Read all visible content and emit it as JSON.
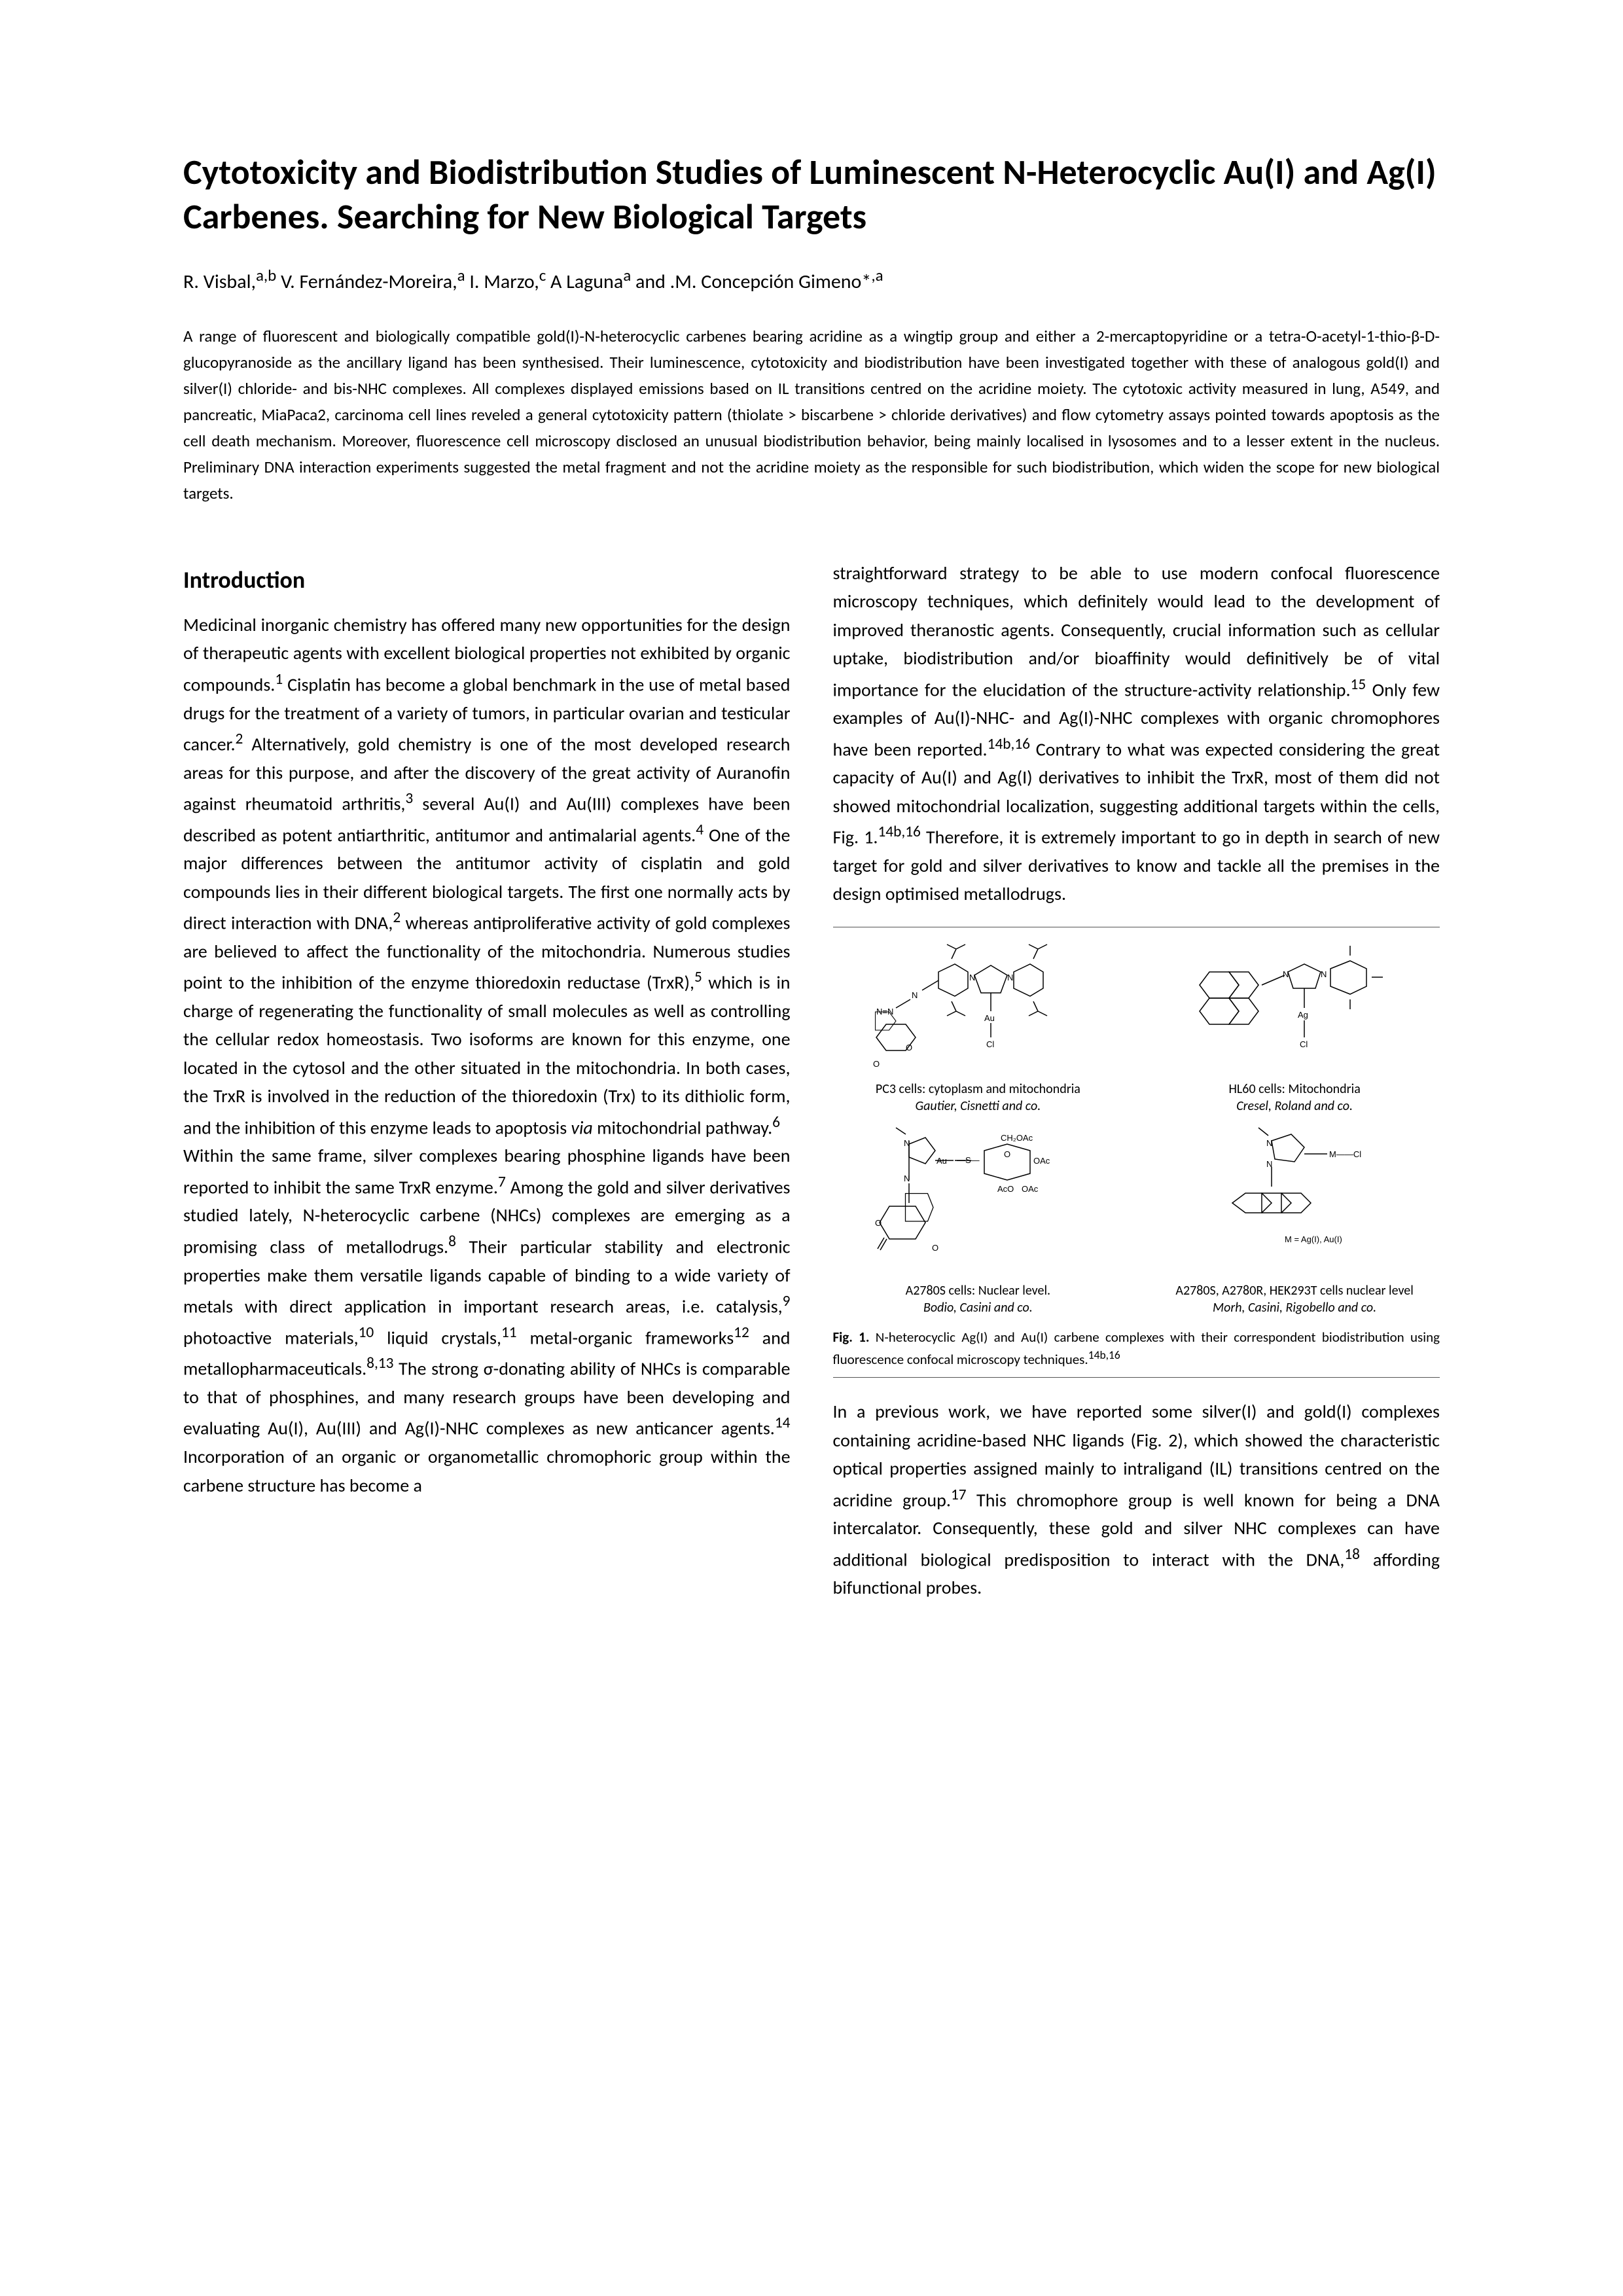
{
  "title": "Cytotoxicity and Biodistribution Studies of Luminescent N-Heterocyclic Au(I) and Ag(I) Carbenes. Searching for New Biological Targets",
  "authors_html": "R. Visbal,<sup>a,b</sup> V. Fernández-Moreira,<sup>a</sup> I. Marzo,<sup>c</sup> A Laguna<sup>a</sup> and .M. Concepción Gimeno*<sup>,a</sup>",
  "abstract": "A range of fluorescent and biologically compatible gold(I)-N-heterocyclic carbenes bearing acridine as a wingtip group and either a 2-mercaptopyridine or a tetra-O-acetyl-1-thio-β-D-glucopyranoside as the ancillary ligand has been synthesised. Their luminescence, cytotoxicity and biodistribution have been investigated together with these of analogous gold(I) and silver(I) chloride- and bis-NHC complexes. All complexes displayed emissions based on IL transitions centred on the acridine moiety. The cytotoxic activity measured in lung, A549, and pancreatic, MiaPaca2, carcinoma cell lines reveled a general cytotoxicity pattern (thiolate > biscarbene > chloride derivatives) and flow cytometry assays pointed towards apoptosis as the cell death mechanism. Moreover, fluorescence cell microscopy disclosed an unusual biodistribution behavior, being mainly localised in lysosomes and to a lesser extent in the nucleus. Preliminary DNA interaction experiments suggested the metal fragment and not the acridine moiety as the responsible for such biodistribution, which widen the scope for new biological targets.",
  "intro_heading": "Introduction",
  "col1_p1_html": "Medicinal inorganic chemistry has offered many new opportunities for the design of therapeutic agents with excellent biological properties not exhibited by organic compounds.<sup>1</sup> Cisplatin has become a global benchmark in the use of metal based drugs for the treatment of a variety of tumors, in particular ovarian and testicular cancer.<sup>2</sup> Alternatively, gold chemistry is one of the most developed research areas for this purpose, and after the discovery of the great activity of Auranofin against rheumatoid arthritis,<sup>3</sup> several Au(I) and Au(III) complexes have been described as potent antiarthritic, antitumor and antimalarial agents.<sup>4</sup> One of the major differences between the antitumor activity of cisplatin and gold compounds lies in their different biological targets. The first one normally acts by direct interaction with DNA,<sup>2</sup> whereas antiproliferative activity of gold complexes are believed to affect the functionality of the mitochondria. Numerous studies point to the inhibition of the enzyme thioredoxin reductase (TrxR),<sup>5</sup> which is in charge of regenerating the functionality of small molecules as well as controlling the cellular redox homeostasis. Two isoforms are known for this enzyme, one located in the cytosol and the other situated in the mitochondria. In both cases, the TrxR is involved in the reduction of the thioredoxin (Trx) to its dithiolic form, and the inhibition of this enzyme leads to apoptosis <i>via</i> mitochondrial pathway.<sup>6</sup>",
  "col1_p2_html": "Within the same frame, silver complexes bearing phosphine ligands have been reported to inhibit the same TrxR enzyme.<sup>7</sup> Among the gold and silver derivatives studied lately, N-heterocyclic carbene (NHCs) complexes are emerging as a promising class of metallodrugs.<sup>8</sup> Their particular stability and electronic properties make them versatile ligands capable of binding to a wide variety of metals with direct application in important research areas, i.e. catalysis,<sup>9</sup> photoactive materials,<sup>10</sup> liquid crystals,<sup>11</sup> metal-organic frameworks<sup>12</sup> and metallopharmaceuticals.<sup>8,13</sup> The strong σ-donating ability of NHCs is comparable to that of phosphines, and many research groups have been developing and evaluating Au(I), Au(III) and Ag(I)-NHC complexes as new anticancer agents.<sup>14</sup> Incorporation of an organic or organometallic chromophoric group within the carbene structure has become a",
  "col2_p1_html": "straightforward strategy to be able to use modern confocal fluorescence microscopy techniques, which definitely would lead to the development of improved theranostic agents. Consequently, crucial information such as cellular uptake, biodistribution and/or bioaffinity would definitively be of vital importance for the elucidation of the structure-activity relationship.<sup>15</sup> Only few examples of Au(I)-NHC- and Ag(I)-NHC complexes with organic chromophores have been reported.<sup>14b,16</sup> Contrary to what was expected considering the great capacity of Au(I) and Ag(I) derivatives to inhibit the TrxR, most of them did not showed mitochondrial localization, suggesting additional targets within the cells, Fig. 1.<sup>14b,16</sup> Therefore, it is extremely important to go in depth in search of new target for gold and silver derivatives to know and tackle all the premises in the design optimised metallodrugs.",
  "col2_p2_html": "In a previous work, we have reported some silver(I) and gold(I) complexes containing acridine-based NHC ligands (Fig. 2), which showed the characteristic optical properties assigned mainly to intraligand (IL) transitions centred on the acridine group.<sup>17</sup> This chromophore group is well known for being a DNA intercalator. Consequently, these gold and silver NHC complexes can have additional biological predisposition to interact with the DNA,<sup>18</sup> affording bifunctional probes.",
  "figure": {
    "cells": [
      {
        "cap_line1": "PC3 cells: cytoplasm and mitochondria",
        "cap_line2": "Gautier, Cisnetti and co."
      },
      {
        "cap_line1": "HL60 cells: Mitochondria",
        "cap_line2": "Cresel, Roland and co."
      },
      {
        "cap_line1": "A2780S cells: Nuclear level.",
        "cap_line2": "Bodio, Casini and co."
      },
      {
        "cap_line1": "A2780S, A2780R, HEK293T cells nuclear level",
        "cap_line2": "Morh, Casini, Rigobello and co."
      }
    ],
    "caption_html": "<b>Fig. 1.</b> N-heterocyclic Ag(I) and Au(I) carbene complexes with their correspondent biodistribution using fluorescence confocal microscopy techniques.<sup>14b,16</sup>"
  },
  "colors": {
    "text": "#000000",
    "background": "#ffffff",
    "rule": "#555555"
  },
  "typography": {
    "title_pt": 54,
    "authors_pt": 30,
    "abstract_pt": 25,
    "heading_pt": 36,
    "body_pt": 28,
    "fig_small_pt": 20,
    "fig_caption_pt": 21
  }
}
